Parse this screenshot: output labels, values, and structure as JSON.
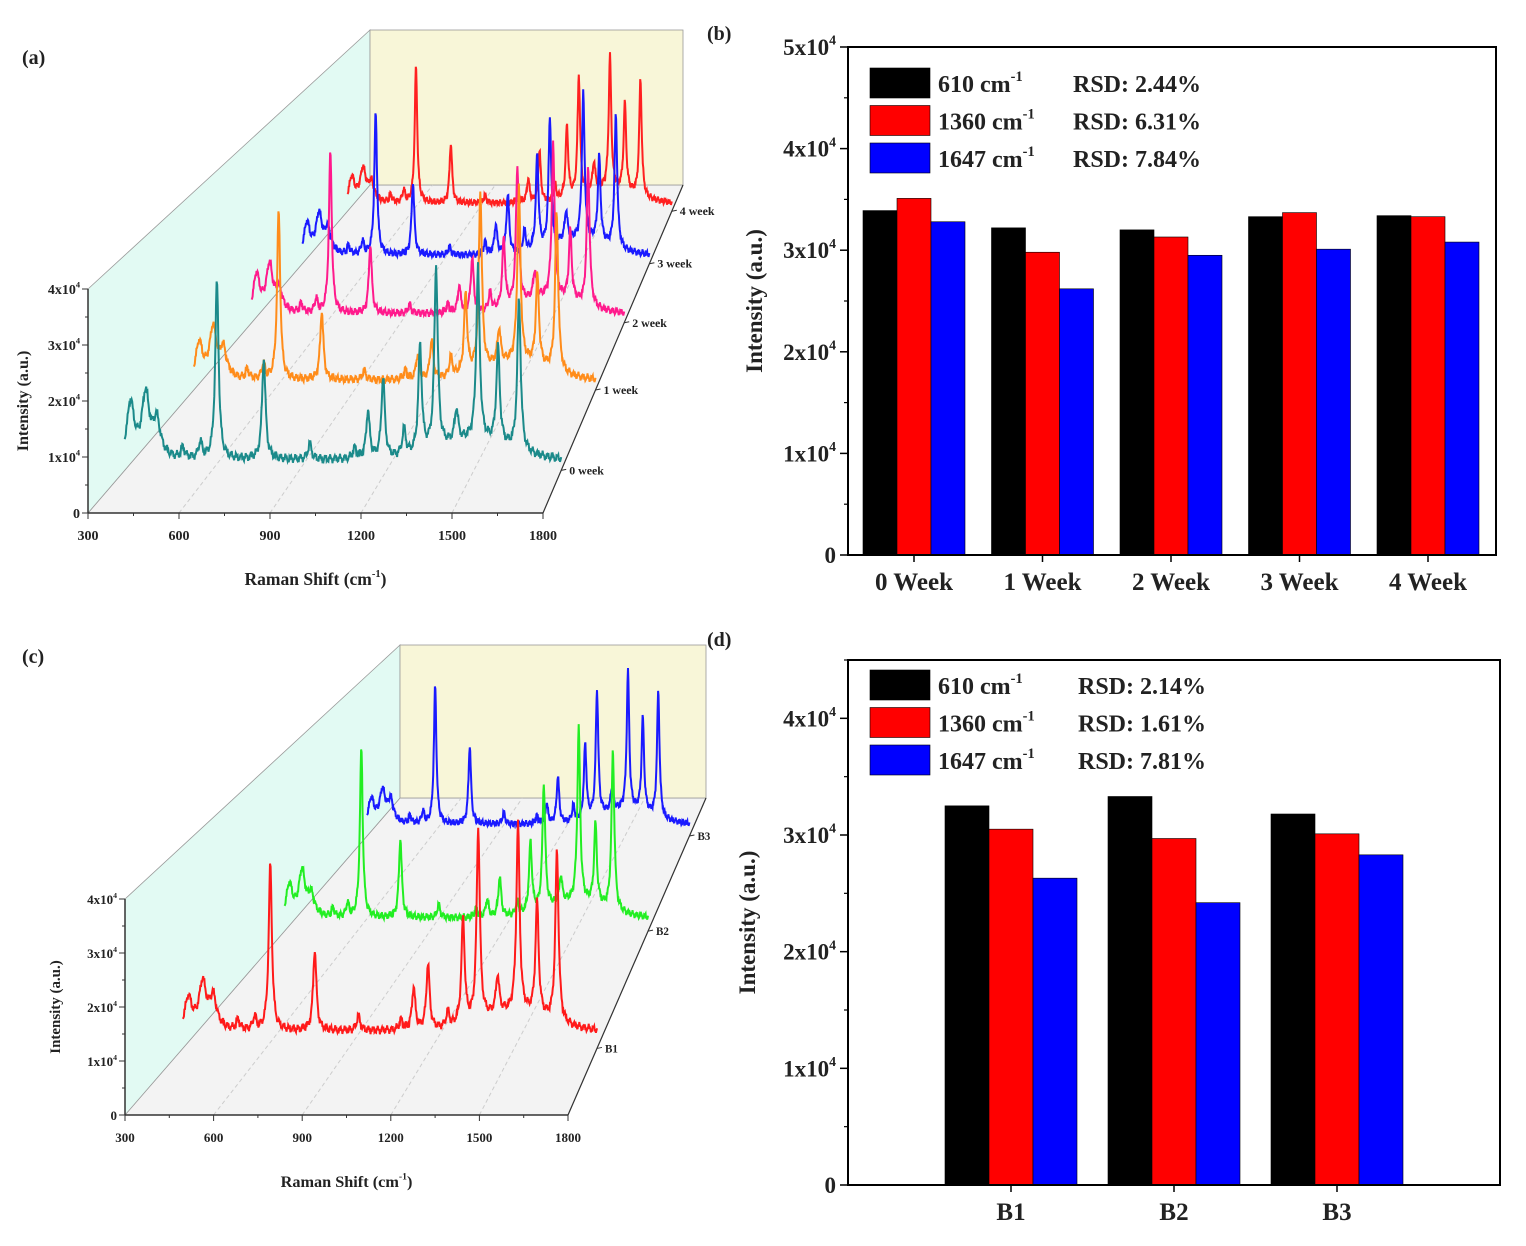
{
  "panel_labels": [
    "(a)",
    "(b)",
    "(c)",
    "(d)"
  ],
  "chart_data": [
    {
      "panel": "(a)",
      "type": "line",
      "subtype": "3d-waterfall",
      "xlabel": "Raman Shift (cm^-1)",
      "ylabel": "Intensity (a.u.)",
      "xlim": [
        300,
        1800
      ],
      "ylim": [
        0,
        40000
      ],
      "xticks": [
        "300",
        "600",
        "900",
        "1200",
        "1500",
        "1800"
      ],
      "yticks": [
        "0",
        "1x10^4",
        "2x10^4",
        "3x10^4",
        "4x10^4"
      ],
      "peak_positions": [
        320,
        372,
        410,
        500,
        560,
        617,
        778,
        936,
        1090,
        1136,
        1188,
        1260,
        1315,
        1370,
        1440,
        1514,
        1583,
        1655
      ],
      "series": [
        {
          "name": "0 week",
          "color": "#1b8a8a",
          "baseline": 0.2,
          "peak_heights": [
            1.0,
            1.05,
            0.6,
            0.2,
            0.3,
            3.3,
            1.9,
            0.3,
            0.2,
            0.9,
            1.5,
            0.5,
            2.0,
            3.4,
            0.6,
            3.2,
            1.8,
            2.8
          ]
        },
        {
          "name": "1 week",
          "color": "#ff8c1a",
          "baseline": 0.2,
          "peak_heights": [
            0.7,
            0.9,
            0.5,
            0.2,
            0.3,
            3.4,
            1.4,
            0.2,
            0.2,
            0.5,
            0.8,
            0.4,
            1.6,
            3.6,
            0.7,
            3.5,
            1.8,
            3.2
          ]
        },
        {
          "name": "2 week",
          "color": "#ff1a8c",
          "baseline": 0.2,
          "peak_heights": [
            0.8,
            0.9,
            0.4,
            0.2,
            0.3,
            3.5,
            1.5,
            0.2,
            0.2,
            0.6,
            1.2,
            0.4,
            1.5,
            3.0,
            0.6,
            3.3,
            1.5,
            3.0
          ]
        },
        {
          "name": "3 week",
          "color": "#1a1aff",
          "baseline": 0.2,
          "peak_heights": [
            0.7,
            0.8,
            0.5,
            0.2,
            0.3,
            3.3,
            1.7,
            0.2,
            0.3,
            0.7,
            1.4,
            0.5,
            2.2,
            3.0,
            0.7,
            3.4,
            2.0,
            3.1
          ]
        },
        {
          "name": "4 week",
          "color": "#ff2020",
          "baseline": 0.2,
          "peak_heights": [
            0.6,
            0.7,
            0.4,
            0.2,
            0.3,
            3.4,
            1.5,
            0.2,
            0.2,
            0.6,
            1.3,
            0.4,
            1.8,
            3.0,
            0.7,
            3.3,
            2.2,
            2.9
          ]
        }
      ]
    },
    {
      "panel": "(b)",
      "type": "bar",
      "ylabel": "Intensity (a.u.)",
      "ylim": [
        0,
        50000
      ],
      "yticks": [
        "0",
        "1x10^4",
        "2x10^4",
        "3x10^4",
        "4x10^4",
        "5x10^4"
      ],
      "categories": [
        "0 Week",
        "1 Week",
        "2 Week",
        "3 Week",
        "4 Week"
      ],
      "legend_position": "top-left",
      "series": [
        {
          "name": "610 cm^-1",
          "rsd": "RSD: 2.44%",
          "color": "#000000",
          "values": [
            33900,
            32200,
            32000,
            33300,
            33400
          ]
        },
        {
          "name": "1360 cm^-1",
          "rsd": "RSD: 6.31%",
          "color": "#ff0000",
          "values": [
            35100,
            29800,
            31300,
            33700,
            33300
          ]
        },
        {
          "name": "1647 cm^-1",
          "rsd": "RSD: 7.84%",
          "color": "#0000ff",
          "values": [
            32800,
            26200,
            29500,
            30100,
            30800
          ]
        }
      ]
    },
    {
      "panel": "(c)",
      "type": "line",
      "subtype": "3d-waterfall",
      "xlabel": "Raman Shift (cm^-1)",
      "ylabel": "Intensity (a.u.)",
      "xlim": [
        300,
        1800
      ],
      "ylim": [
        0,
        40000
      ],
      "xticks": [
        "300",
        "600",
        "900",
        "1200",
        "1500",
        "1800"
      ],
      "yticks": [
        "0",
        "1x10^4",
        "2x10^4",
        "3x10^4",
        "4x10^4"
      ],
      "peak_positions": [
        320,
        372,
        410,
        500,
        560,
        617,
        778,
        936,
        1090,
        1136,
        1188,
        1260,
        1315,
        1370,
        1440,
        1514,
        1583,
        1655
      ],
      "series": [
        {
          "name": "B1",
          "color": "#ff1a1a",
          "baseline": 0.35,
          "peak_heights": [
            0.6,
            0.8,
            0.55,
            0.2,
            0.25,
            3.3,
            1.6,
            0.3,
            0.2,
            0.85,
            1.3,
            0.3,
            2.1,
            3.8,
            0.75,
            3.7,
            2.25,
            3.4
          ]
        },
        {
          "name": "B2",
          "color": "#22ee22",
          "baseline": 0.3,
          "peak_heights": [
            0.7,
            0.9,
            0.4,
            0.2,
            0.3,
            3.8,
            1.8,
            0.3,
            0.2,
            0.4,
            0.9,
            0.3,
            1.6,
            2.8,
            0.6,
            3.9,
            1.8,
            3.6
          ]
        },
        {
          "name": "B3",
          "color": "#1a1aff",
          "baseline": 0.3,
          "peak_heights": [
            0.6,
            0.7,
            0.5,
            0.2,
            0.3,
            3.5,
            2.0,
            0.3,
            0.2,
            0.5,
            1.2,
            0.4,
            1.9,
            3.2,
            0.6,
            3.5,
            2.4,
            3.2
          ]
        }
      ]
    },
    {
      "panel": "(d)",
      "type": "bar",
      "ylabel": "Intensity (a.u.)",
      "ylim": [
        0,
        45000
      ],
      "xlim": [
        0,
        4
      ],
      "yticks": [
        "0",
        "1x10^4",
        "2x10^4",
        "3x10^4",
        "4x10^4"
      ],
      "categories": [
        "B1",
        "B2",
        "B3"
      ],
      "legend_position": "top-left",
      "series": [
        {
          "name": "610 cm^-1",
          "rsd": "RSD: 2.14%",
          "color": "#000000",
          "values": [
            32500,
            33300,
            31800
          ]
        },
        {
          "name": "1360 cm^-1",
          "rsd": "RSD: 1.61%",
          "color": "#ff0000",
          "values": [
            30500,
            29700,
            30100
          ]
        },
        {
          "name": "1647 cm^-1",
          "rsd": "RSD: 7.81%",
          "color": "#0000ff",
          "values": [
            26300,
            24200,
            28300
          ]
        }
      ]
    }
  ]
}
